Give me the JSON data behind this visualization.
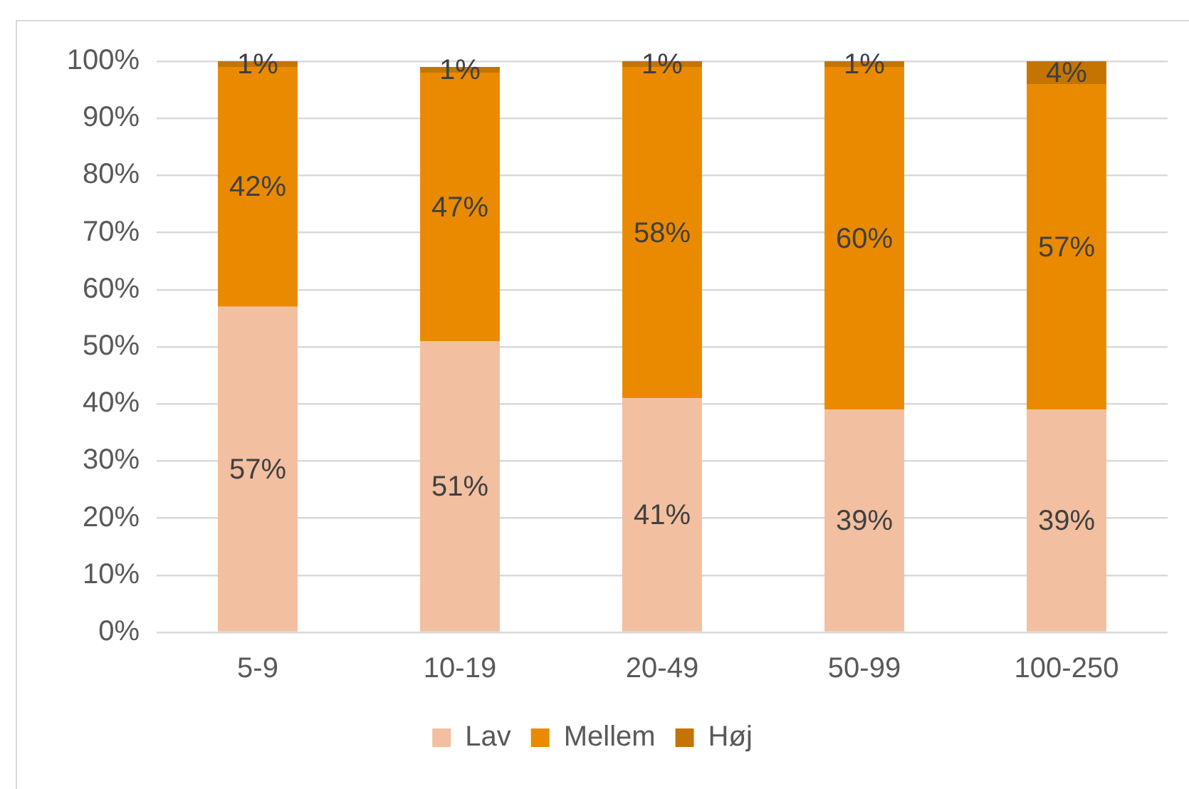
{
  "chart_data": {
    "type": "bar",
    "categories": [
      "5-9",
      "10-19",
      "20-49",
      "50-99",
      "100-250"
    ],
    "stacked": true,
    "series": [
      {
        "name": "Lav",
        "color": "#f2bfa0",
        "values": [
          57,
          51,
          41,
          39,
          39
        ],
        "value_labels": [
          "57%",
          "51%",
          "41%",
          "39%",
          "39%"
        ]
      },
      {
        "name": "Mellem",
        "color": "#ea8a00",
        "values": [
          42,
          47,
          58,
          60,
          57
        ],
        "value_labels": [
          "42%",
          "47%",
          "58%",
          "60%",
          "57%"
        ]
      },
      {
        "name": "Høj",
        "color": "#c47400",
        "values": [
          1,
          1,
          1,
          1,
          4
        ],
        "value_labels": [
          "1%",
          "1%",
          "1%",
          "1%",
          "4%"
        ]
      }
    ],
    "ylim": [
      0,
      100
    ],
    "yticks": [
      {
        "value": 0,
        "label": "0%"
      },
      {
        "value": 10,
        "label": "10%"
      },
      {
        "value": 20,
        "label": "20%"
      },
      {
        "value": 30,
        "label": "30%"
      },
      {
        "value": 40,
        "label": "40%"
      },
      {
        "value": 50,
        "label": "50%"
      },
      {
        "value": 60,
        "label": "60%"
      },
      {
        "value": 70,
        "label": "70%"
      },
      {
        "value": 80,
        "label": "80%"
      },
      {
        "value": 90,
        "label": "90%"
      },
      {
        "value": 100,
        "label": "100%"
      }
    ],
    "grid": "y",
    "legend": "bottom"
  }
}
